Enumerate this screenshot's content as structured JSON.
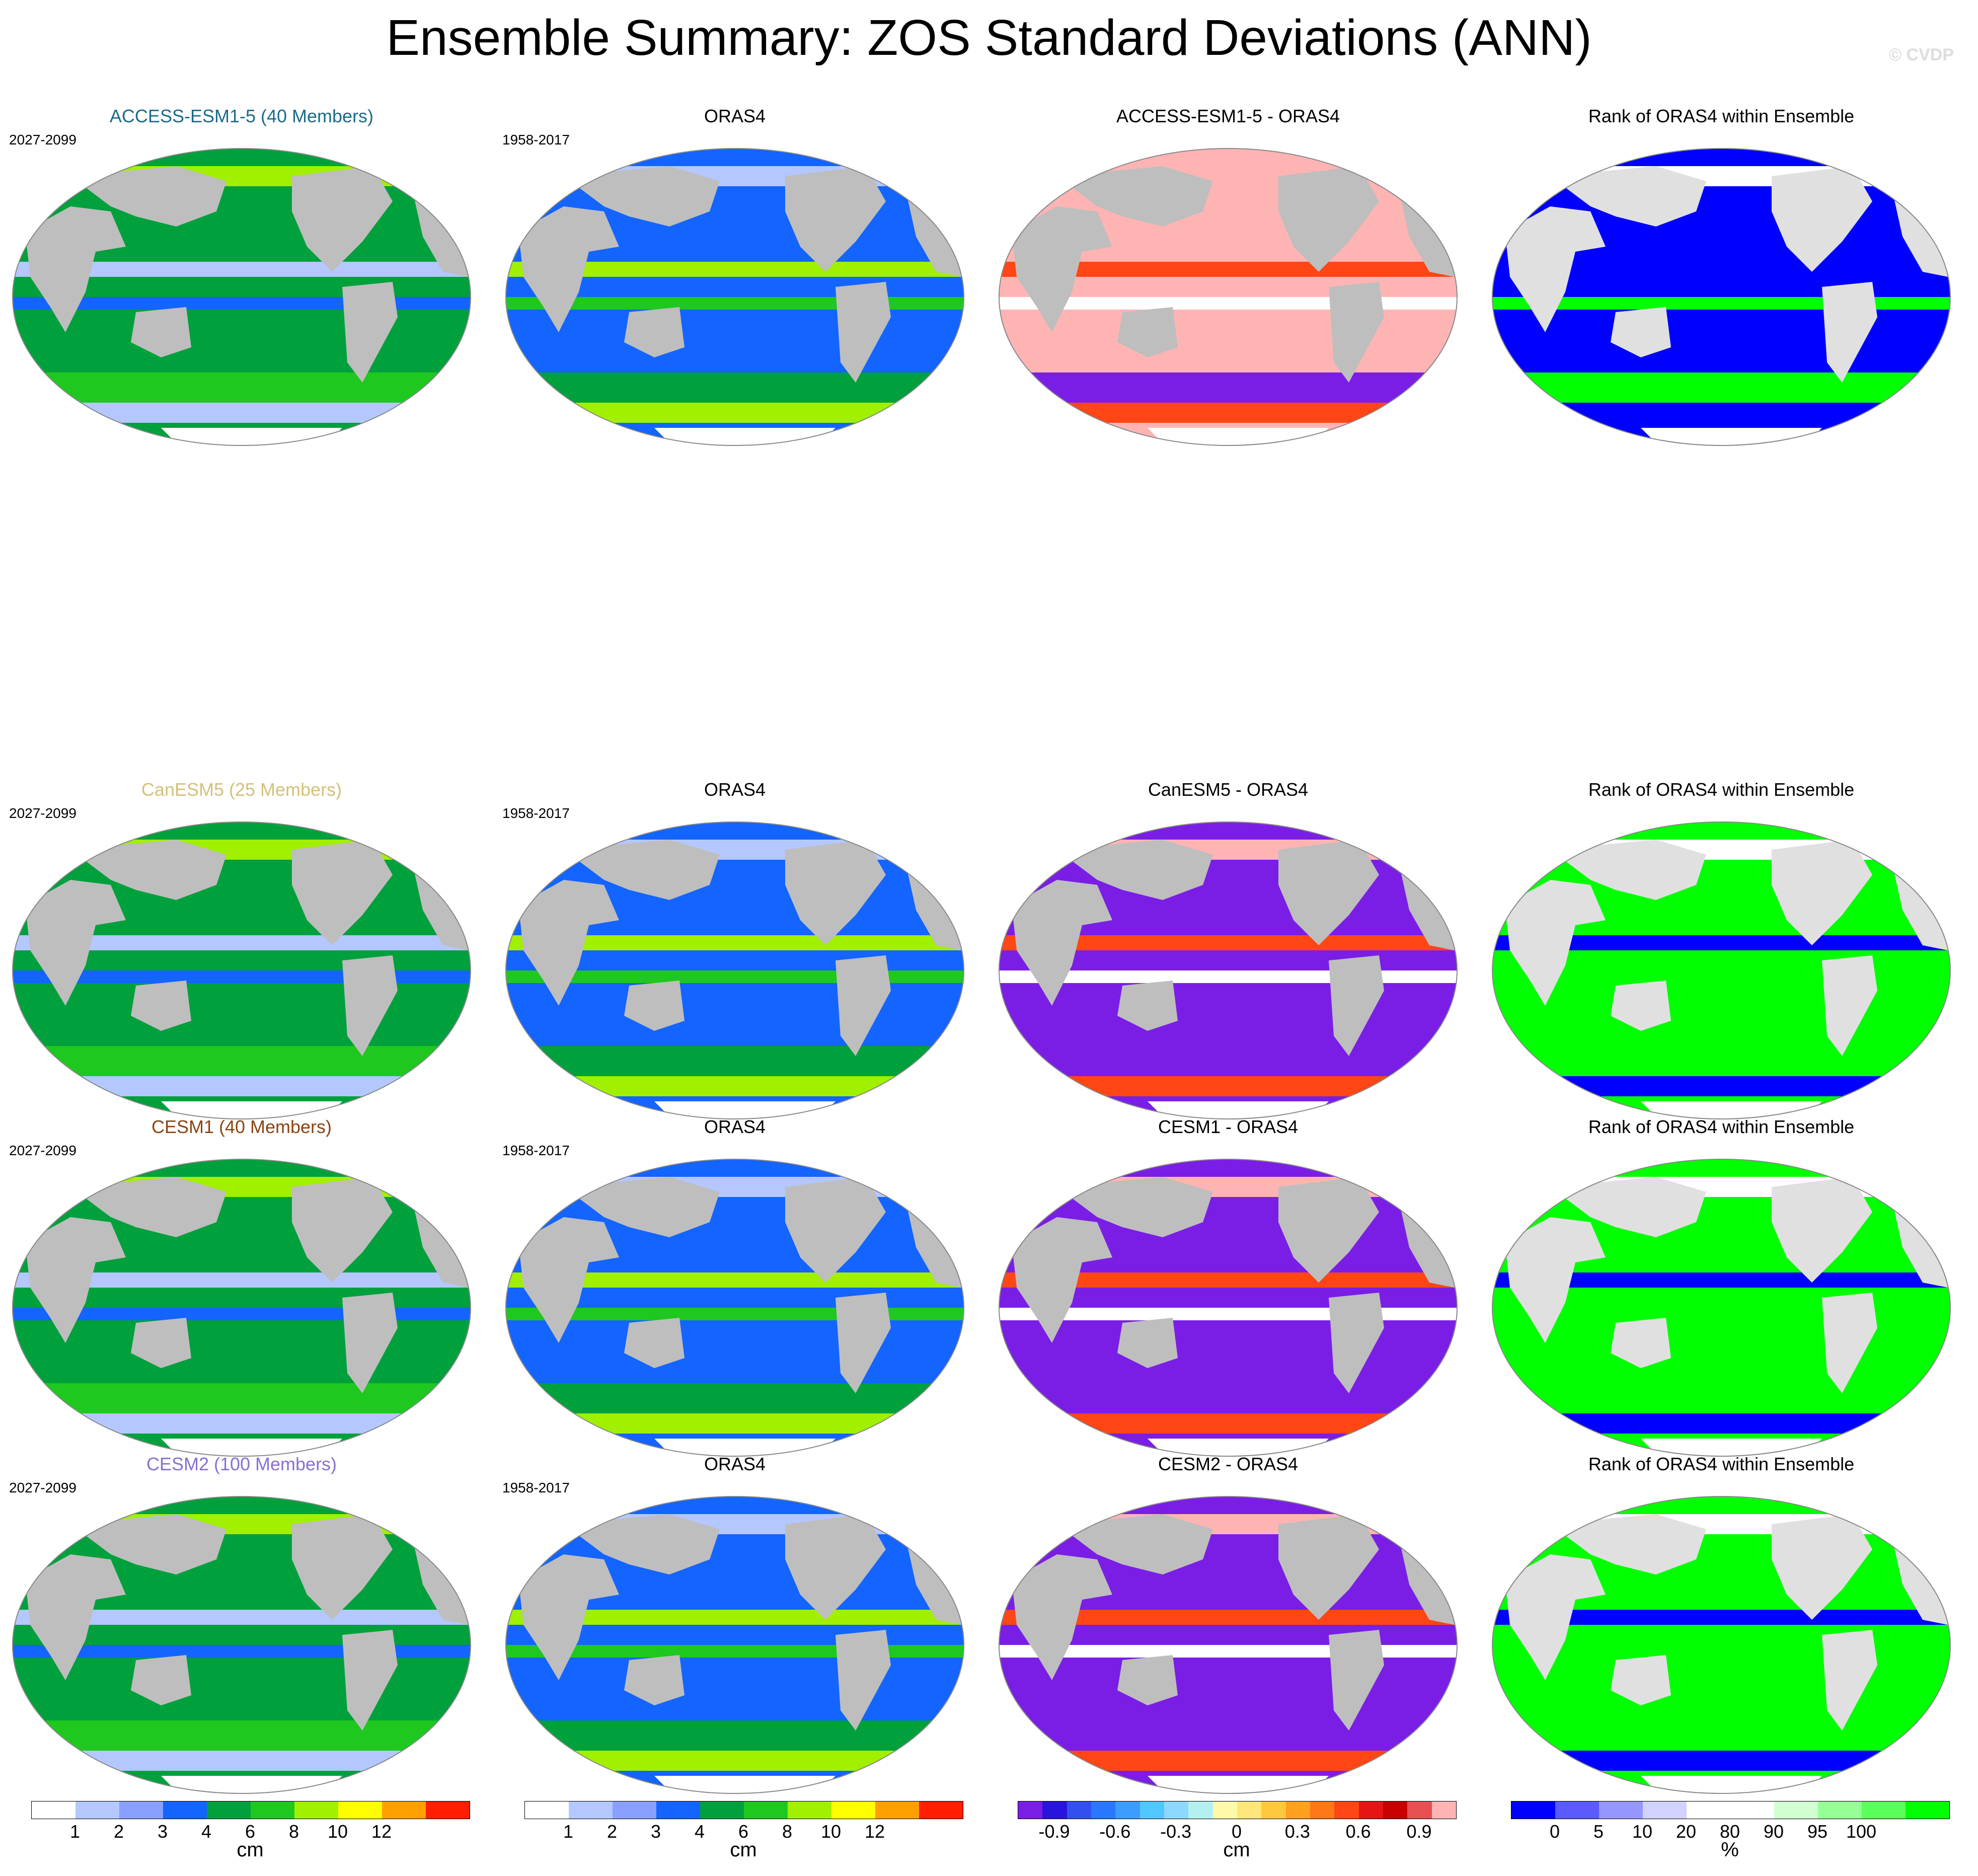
{
  "title": "Ensemble Summary: ZOS Standard Deviations (ANN)",
  "credit": "© CVDP",
  "rows": [
    {
      "model_title": "ACCESS-ESM1-5 (40 Members)",
      "model_color": "#1a6b8a",
      "model_years": "2027-2099",
      "obs_title": "ORAS4",
      "obs_years": "1958-2017",
      "diff_title": "ACCESS-ESM1-5 - ORAS4",
      "rank_title": "Rank of ORAS4 within Ensemble"
    },
    {
      "model_title": "CanESM5 (25 Members)",
      "model_color": "#d4c07a",
      "model_years": "2027-2099",
      "obs_title": "ORAS4",
      "obs_years": "1958-2017",
      "diff_title": "CanESM5 - ORAS4",
      "rank_title": "Rank of ORAS4 within Ensemble"
    },
    {
      "model_title": "CESM1 (40 Members)",
      "model_color": "#8b4513",
      "model_years": "2027-2099",
      "obs_title": "ORAS4",
      "obs_years": "1958-2017",
      "diff_title": "CESM1 - ORAS4",
      "rank_title": "Rank of ORAS4 within Ensemble"
    },
    {
      "model_title": "CESM2 (100 Members)",
      "model_color": "#8a6fd1",
      "model_years": "2027-2099",
      "obs_title": "ORAS4",
      "obs_years": "1958-2017",
      "diff_title": "CESM2 - ORAS4",
      "rank_title": "Rank of ORAS4 within Ensemble"
    }
  ],
  "colorbars": [
    {
      "units": "cm",
      "ticks": [
        "1",
        "2",
        "3",
        "4",
        "6",
        "8",
        "10",
        "12"
      ],
      "colors": [
        "#ffffff",
        "#b4c8ff",
        "#8aa0ff",
        "#1464ff",
        "#00a03c",
        "#1ec81e",
        "#a0f000",
        "#ffff00",
        "#ffa000",
        "#ff1e00"
      ]
    },
    {
      "units": "cm",
      "ticks": [
        "1",
        "2",
        "3",
        "4",
        "6",
        "8",
        "10",
        "12"
      ],
      "colors": [
        "#ffffff",
        "#b4c8ff",
        "#8aa0ff",
        "#1464ff",
        "#00a03c",
        "#1ec81e",
        "#a0f000",
        "#ffff00",
        "#ffa000",
        "#ff1e00"
      ]
    },
    {
      "units": "cm",
      "ticks": [
        "-0.9",
        "-0.6",
        "-0.3",
        "0",
        "0.3",
        "0.6",
        "0.9"
      ],
      "colors": [
        "#7a1ee6",
        "#2814dc",
        "#3250f0",
        "#2878ff",
        "#3c9cff",
        "#50c8ff",
        "#8cd8ff",
        "#b4f0f0",
        "#fffaaa",
        "#ffe678",
        "#ffc83c",
        "#ffa01e",
        "#ff7814",
        "#ff4614",
        "#e61414",
        "#c80000",
        "#e65050",
        "#ffb4b4"
      ]
    },
    {
      "units": "%",
      "ticks": [
        "0",
        "5",
        "10",
        "20",
        "80",
        "90",
        "95",
        "100"
      ],
      "colors": [
        "#0000ff",
        "#5a5aff",
        "#9696ff",
        "#d2d2ff",
        "#ffffff",
        "#ffffff",
        "#d2ffd2",
        "#96ff96",
        "#5aff5a",
        "#00ff00"
      ]
    }
  ]
}
